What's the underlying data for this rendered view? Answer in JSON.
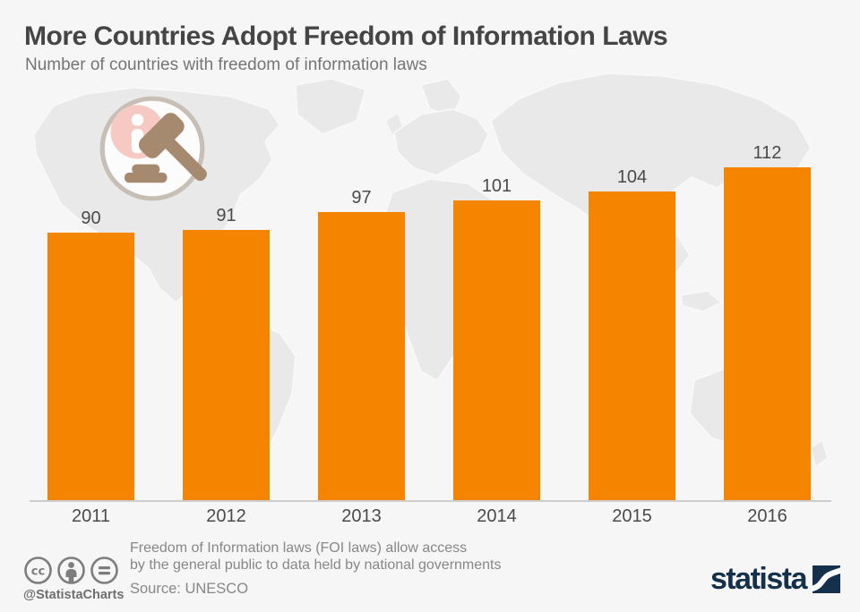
{
  "header": {
    "title": "More Countries Adopt Freedom of Information Laws",
    "subtitle": "Number of countries with freedom of information laws"
  },
  "chart_data": {
    "type": "bar",
    "title": "More Countries Adopt Freedom of Information Laws",
    "subtitle": "Number of countries with freedom of information laws",
    "categories": [
      "2011",
      "2012",
      "2013",
      "2014",
      "2015",
      "2016"
    ],
    "values": [
      90,
      91,
      97,
      101,
      104,
      112
    ],
    "xlabel": "",
    "ylabel": "",
    "ylim": [
      0,
      112
    ],
    "grid": false,
    "legend": false,
    "value_labels_shown": true,
    "bar_color": "#F58500"
  },
  "topic_icon": {
    "name": "info-gavel-icon"
  },
  "footer": {
    "license_icons": [
      "creative-commons-icon",
      "attribution-icon",
      "no-derivatives-icon"
    ],
    "handle": "@StatistaCharts",
    "note_line1": "Freedom of Information laws (FOI laws) allow access",
    "note_line2": "by the general public to data held by national governments",
    "source": "Source: UNESCO",
    "brand_text": "statista"
  },
  "colors": {
    "background": "#F6F6F6",
    "map_land": "#E9E9E9",
    "bar_orange": "#F58500",
    "title_gray": "#454545",
    "subtitle_gray": "#757575",
    "label_gray": "#4A4A4A",
    "axis_gray": "#CDCDCD",
    "footer_gray": "#878787",
    "brand_navy": "#15304B",
    "icon_ring": "#C7BFB6",
    "icon_pink": "#F6C9C2",
    "icon_gavel": "#A58A70"
  }
}
